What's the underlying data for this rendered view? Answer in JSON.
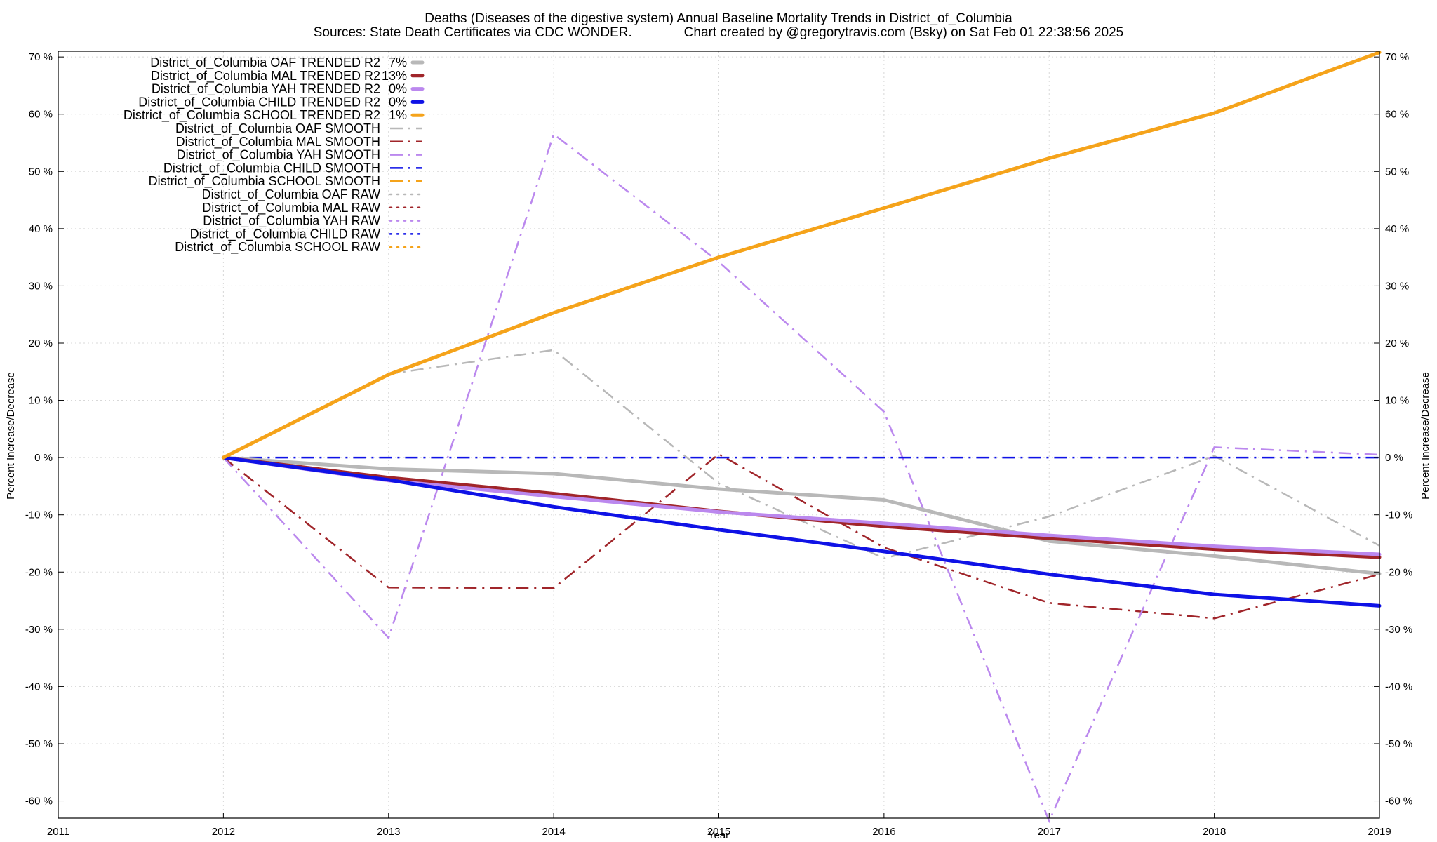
{
  "chart_data": {
    "type": "line",
    "title": "Deaths (Diseases of the digestive system)  Annual Baseline Mortality Trends in District_of_Columbia",
    "subtitle": "Sources: State Death Certificates via CDC WONDER.              Chart created by @gregorytravis.com (Bsky) on Sat Feb 01 22:38:56 2025",
    "xlabel": "Year",
    "ylabel": "Percent Increase/Decrease",
    "y2label": "Percent Increase/Decrease",
    "xlim": [
      2011,
      2019
    ],
    "ylim": [
      -63,
      71
    ],
    "x_ticks": [
      "2011",
      "2012",
      "2013",
      "2014",
      "2015",
      "2016",
      "2017",
      "2018",
      "2019"
    ],
    "y_ticks": [
      "70 %",
      "60 %",
      "50 %",
      "40 %",
      "30 %",
      "20 %",
      "10 %",
      "0 %",
      "-10 %",
      "-20 %",
      "-30 %",
      "-40 %",
      "-50 %",
      "-60 %"
    ],
    "grid": true,
    "legend_position": "top-left",
    "series": [
      {
        "name": "District_of_Columbia OAF TRENDED R2",
        "r2": "7%",
        "style": "solid",
        "color": "#b8b8b8",
        "x": [
          2012,
          2013,
          2014,
          2015,
          2016,
          2017,
          2018,
          2019
        ],
        "values": [
          0,
          -2,
          -2.8,
          -5.5,
          -7.4,
          -14.6,
          -17.2,
          -20.3
        ]
      },
      {
        "name": "District_of_Columbia MAL TRENDED R2",
        "r2": "13%",
        "style": "solid",
        "color": "#a0252a",
        "x": [
          2012,
          2013,
          2014,
          2015,
          2016,
          2017,
          2018,
          2019
        ],
        "values": [
          0,
          -3.5,
          -6.3,
          -9.4,
          -12,
          -14.1,
          -16,
          -17.4
        ]
      },
      {
        "name": "District_of_Columbia YAH TRENDED R2",
        "r2": "0%",
        "style": "solid",
        "color": "#bb88ee",
        "x": [
          2012,
          2013,
          2014,
          2015,
          2016,
          2017,
          2018,
          2019
        ],
        "values": [
          0,
          -4,
          -6.8,
          -9.5,
          -11.5,
          -13.6,
          -15.5,
          -16.9
        ]
      },
      {
        "name": "District_of_Columbia CHILD TRENDED R2",
        "r2": "0%",
        "style": "solid",
        "color": "#0f12e6",
        "x": [
          2012,
          2013,
          2014,
          2015,
          2016,
          2017,
          2018,
          2019
        ],
        "values": [
          0,
          -3.9,
          -8.6,
          -12.6,
          -16.4,
          -20.4,
          -23.9,
          -25.9
        ]
      },
      {
        "name": "District_of_Columbia SCHOOL TRENDED R2",
        "r2": "1%",
        "style": "solid",
        "color": "#f5a31a",
        "x": [
          2012,
          2013,
          2014,
          2015,
          2016,
          2017,
          2018,
          2019
        ],
        "values": [
          0,
          14.5,
          25.3,
          35,
          43.6,
          52.3,
          60.2,
          70.8
        ]
      },
      {
        "name": "District_of_Columbia OAF SMOOTH",
        "style": "dashdot",
        "color": "#b8b8b8",
        "x": [
          2012,
          2013,
          2014,
          2015,
          2016,
          2017,
          2018,
          2019
        ],
        "values": [
          0,
          14.6,
          18.8,
          -4.5,
          -17.6,
          -10.3,
          0.3,
          -15.4
        ]
      },
      {
        "name": "District_of_Columbia MAL SMOOTH",
        "style": "dashdot",
        "color": "#a0252a",
        "x": [
          2012,
          2013,
          2014,
          2015,
          2016,
          2017,
          2018,
          2019
        ],
        "values": [
          0,
          -22.7,
          -22.8,
          0.6,
          -15.7,
          -25.4,
          -28.1,
          -20.4
        ]
      },
      {
        "name": "District_of_Columbia YAH SMOOTH",
        "style": "dashdot",
        "color": "#bb88ee",
        "x": [
          2012,
          2013,
          2014,
          2015,
          2016,
          2017,
          2018,
          2019
        ],
        "values": [
          0,
          -31.5,
          56.5,
          34.2,
          8,
          -63.5,
          1.8,
          0.5
        ]
      },
      {
        "name": "District_of_Columbia CHILD SMOOTH",
        "style": "dashdot",
        "color": "#0f12e6",
        "x": [
          2012,
          2013,
          2014,
          2015,
          2016,
          2017,
          2018,
          2019
        ],
        "values": [
          0,
          0,
          0,
          0,
          0,
          0,
          0,
          0
        ]
      },
      {
        "name": "District_of_Columbia SCHOOL SMOOTH",
        "style": "dashdot",
        "color": "#f5a31a",
        "x": [
          2012,
          2013,
          2014,
          2015,
          2016,
          2017,
          2018,
          2019
        ],
        "values": [
          0,
          14.5,
          25.3,
          35,
          43.6,
          52.3,
          60.2,
          70.8
        ]
      },
      {
        "name": "District_of_Columbia OAF RAW",
        "style": "dotted",
        "color": "#b8b8b8",
        "x": [],
        "values": []
      },
      {
        "name": "District_of_Columbia MAL RAW",
        "style": "dotted",
        "color": "#a0252a",
        "x": [],
        "values": []
      },
      {
        "name": "District_of_Columbia YAH RAW",
        "style": "dotted",
        "color": "#bb88ee",
        "x": [],
        "values": []
      },
      {
        "name": "District_of_Columbia CHILD RAW",
        "style": "dotted",
        "color": "#0f12e6",
        "x": [],
        "values": []
      },
      {
        "name": "District_of_Columbia SCHOOL RAW",
        "style": "dotted",
        "color": "#f5a31a",
        "x": [],
        "values": []
      }
    ]
  }
}
